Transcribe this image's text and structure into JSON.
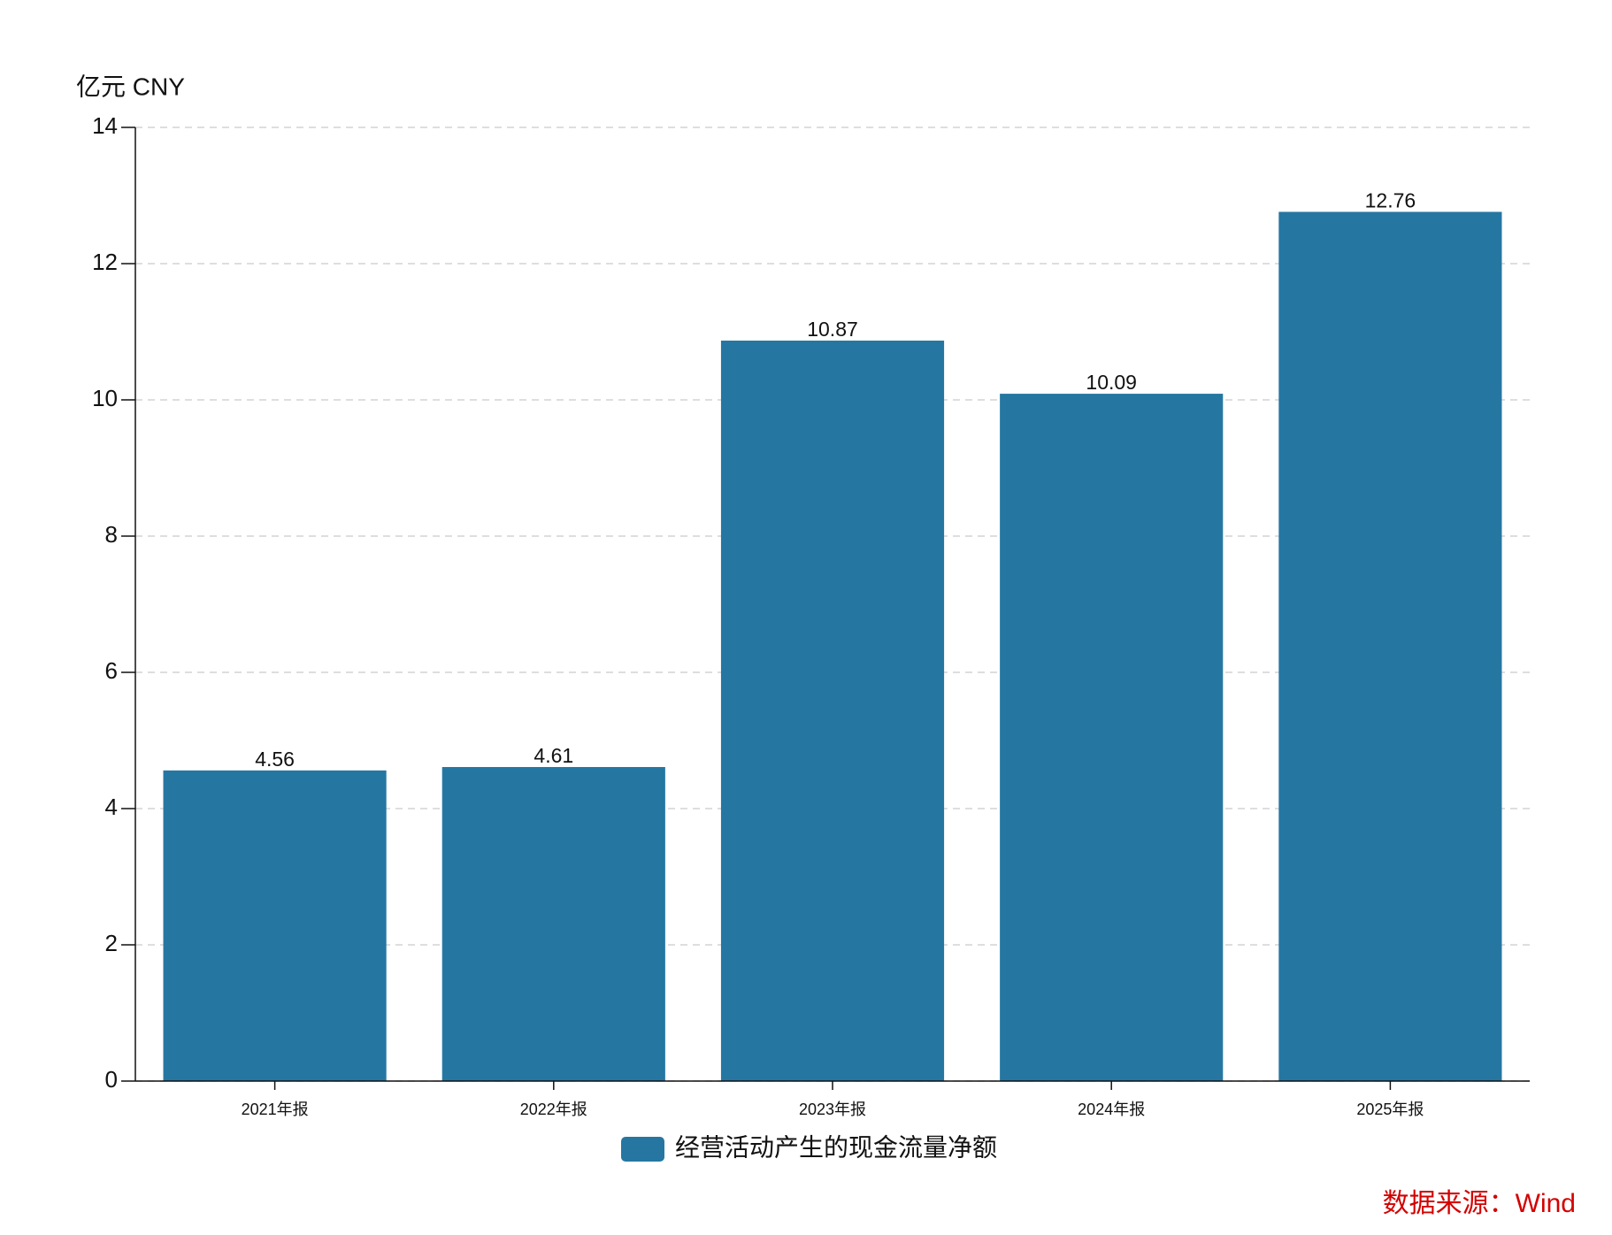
{
  "chart_data": {
    "type": "bar",
    "y_label": "亿元  CNY",
    "categories": [
      "2021年报",
      "2022年报",
      "2023年报",
      "2024年报",
      "2025年报"
    ],
    "series": [
      {
        "name": "经营活动产生的现金流量净额",
        "color": "#2577a2",
        "values": [
          4.56,
          4.61,
          10.87,
          10.09,
          12.76
        ]
      }
    ],
    "ylim": [
      0,
      14
    ],
    "yticks": [
      0,
      2,
      4,
      6,
      8,
      10,
      12,
      14
    ],
    "grid": true,
    "source": "数据来源：Wind"
  }
}
